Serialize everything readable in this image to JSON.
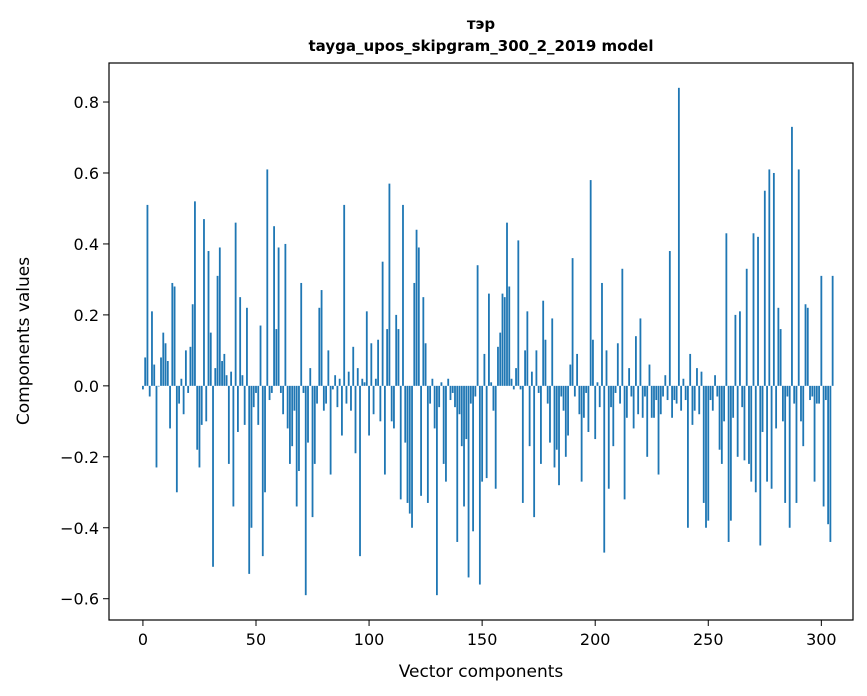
{
  "chart_data": {
    "type": "bar",
    "title": "тэр",
    "subtitle": "tayga_upos_skipgram_300_2_2019 model",
    "xlabel": "Vector components",
    "ylabel": "Components values",
    "xlim": [
      -15,
      314
    ],
    "ylim": [
      -0.66,
      0.91
    ],
    "xticks": [
      0,
      50,
      100,
      150,
      200,
      250,
      300
    ],
    "xtick_labels": [
      "0",
      "50",
      "100",
      "150",
      "200",
      "250",
      "300"
    ],
    "yticks": [
      -0.6,
      -0.4,
      -0.2,
      0.0,
      0.2,
      0.4,
      0.6,
      0.8
    ],
    "ytick_labels": [
      "−0.6",
      "−0.4",
      "−0.2",
      "0.0",
      "0.2",
      "0.4",
      "0.6",
      "0.8"
    ],
    "bar_color": "#1f77b4",
    "grid": false,
    "values": [
      -0.01,
      0.08,
      0.51,
      -0.03,
      0.21,
      0.06,
      -0.23,
      0.0,
      0.08,
      0.15,
      0.12,
      0.07,
      -0.12,
      0.29,
      0.28,
      -0.3,
      -0.05,
      0.02,
      -0.08,
      0.1,
      -0.02,
      0.11,
      0.23,
      0.52,
      -0.18,
      -0.23,
      -0.11,
      0.47,
      -0.1,
      0.38,
      0.15,
      -0.51,
      0.05,
      0.31,
      0.39,
      0.07,
      0.09,
      0.03,
      -0.22,
      0.04,
      -0.34,
      0.46,
      -0.13,
      0.25,
      0.03,
      -0.11,
      0.22,
      -0.53,
      -0.4,
      -0.06,
      -0.02,
      -0.11,
      0.17,
      -0.48,
      -0.3,
      0.61,
      -0.04,
      -0.02,
      0.45,
      0.16,
      0.39,
      -0.02,
      -0.08,
      0.4,
      -0.12,
      -0.22,
      -0.17,
      -0.07,
      -0.34,
      -0.24,
      0.29,
      -0.02,
      -0.59,
      -0.16,
      0.05,
      -0.37,
      -0.22,
      -0.05,
      0.22,
      0.27,
      -0.07,
      -0.05,
      0.1,
      -0.25,
      -0.01,
      0.03,
      -0.06,
      0.02,
      -0.14,
      0.51,
      -0.05,
      0.04,
      -0.07,
      0.11,
      -0.19,
      0.05,
      -0.48,
      0.02,
      0.01,
      0.21,
      -0.14,
      0.12,
      -0.08,
      0.02,
      0.13,
      -0.1,
      0.35,
      -0.25,
      0.16,
      0.57,
      -0.1,
      -0.12,
      0.2,
      0.16,
      -0.32,
      0.51,
      -0.16,
      -0.33,
      -0.36,
      -0.4,
      0.29,
      0.44,
      0.39,
      -0.31,
      0.25,
      0.12,
      -0.33,
      -0.05,
      0.02,
      -0.12,
      -0.59,
      -0.06,
      0.01,
      -0.22,
      -0.27,
      0.02,
      -0.04,
      -0.02,
      -0.06,
      -0.44,
      -0.08,
      -0.17,
      -0.34,
      -0.15,
      -0.54,
      -0.05,
      -0.41,
      -0.03,
      0.34,
      -0.56,
      -0.27,
      0.09,
      -0.26,
      0.26,
      0.01,
      -0.07,
      -0.29,
      0.11,
      0.15,
      0.26,
      0.25,
      0.46,
      0.28,
      0.02,
      -0.01,
      0.05,
      0.41,
      -0.01,
      -0.33,
      0.1,
      0.21,
      -0.17,
      0.04,
      -0.37,
      0.1,
      -0.02,
      -0.22,
      0.24,
      0.13,
      -0.05,
      -0.16,
      0.19,
      -0.23,
      -0.18,
      -0.28,
      -0.03,
      -0.07,
      -0.2,
      -0.14,
      0.06,
      0.36,
      -0.03,
      0.09,
      -0.08,
      -0.27,
      -0.09,
      -0.02,
      -0.13,
      0.58,
      0.13,
      -0.15,
      0.01,
      -0.06,
      0.29,
      -0.47,
      0.1,
      -0.29,
      -0.06,
      -0.17,
      -0.02,
      0.12,
      -0.05,
      0.33,
      -0.32,
      -0.09,
      0.05,
      -0.03,
      -0.12,
      0.14,
      -0.08,
      0.19,
      -0.09,
      -0.03,
      -0.2,
      0.06,
      -0.09,
      -0.09,
      -0.04,
      -0.25,
      -0.08,
      -0.03,
      0.03,
      -0.04,
      0.38,
      -0.09,
      -0.04,
      -0.05,
      0.84,
      -0.07,
      0.02,
      -0.04,
      -0.4,
      0.09,
      -0.11,
      -0.07,
      0.05,
      -0.08,
      0.04,
      -0.33,
      -0.4,
      -0.38,
      -0.04,
      -0.07,
      0.03,
      -0.03,
      -0.18,
      -0.22,
      -0.1,
      0.43,
      -0.44,
      -0.38,
      -0.09,
      0.2,
      -0.2,
      0.21,
      -0.06,
      -0.21,
      0.33,
      -0.22,
      -0.27,
      0.43,
      -0.3,
      0.42,
      -0.45,
      -0.13,
      0.55,
      -0.27,
      0.61,
      -0.29,
      0.6,
      -0.12,
      0.22,
      0.16,
      -0.1,
      -0.33,
      -0.03,
      -0.4,
      0.73,
      -0.05,
      -0.33,
      0.61,
      -0.1,
      -0.17,
      0.23,
      0.22,
      -0.04,
      -0.03,
      -0.27,
      -0.05,
      -0.05,
      0.31,
      -0.34,
      -0.04,
      -0.39,
      -0.44,
      0.31
    ]
  }
}
